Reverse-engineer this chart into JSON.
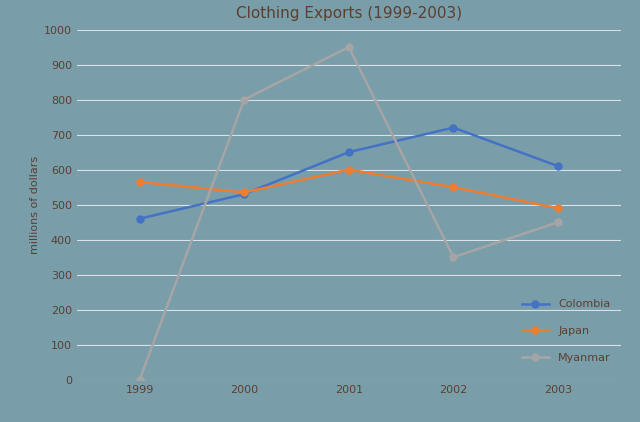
{
  "title": "Clothing Exports (1999-2003)",
  "ylabel": "millions of dollars",
  "years": [
    1999,
    2000,
    2001,
    2002,
    2003
  ],
  "series": {
    "Colombia": {
      "values": [
        460,
        530,
        650,
        720,
        610
      ],
      "color": "#4472c4",
      "marker": "o"
    },
    "Japan": {
      "values": [
        565,
        535,
        600,
        550,
        490
      ],
      "color": "#ed7d31",
      "marker": "o"
    },
    "Myanmar": {
      "values": [
        0,
        800,
        950,
        350,
        450
      ],
      "color": "#a5a5a5",
      "marker": "o"
    }
  },
  "ylim": [
    0,
    1000
  ],
  "yticks": [
    0,
    100,
    200,
    300,
    400,
    500,
    600,
    700,
    800,
    900,
    1000
  ],
  "background_color": "#7a9daa",
  "grid_color": "#c8dde4",
  "title_color": "#5a4030",
  "label_color": "#5a4030",
  "tick_color": "#5a4030",
  "legend_loc": "lower right"
}
